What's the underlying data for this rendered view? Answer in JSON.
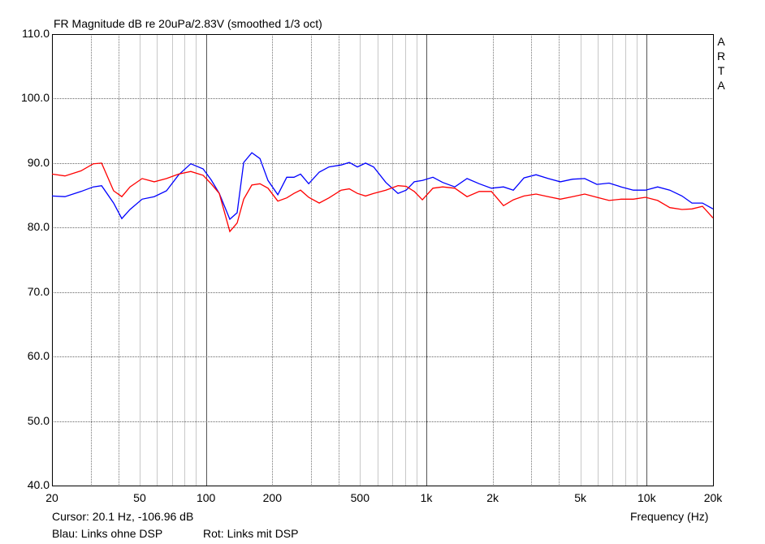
{
  "chart_data": {
    "type": "line",
    "title": "FR Magnitude dB re 20uPa/2.83V (smoothed 1/3 oct)",
    "watermark": "ARTA",
    "xlabel": "Frequency (Hz)",
    "ylabel": "",
    "xscale": "log",
    "xlim": [
      20,
      20000
    ],
    "ylim": [
      40,
      110
    ],
    "grid": true,
    "yticks": [
      {
        "value": 110,
        "label": "110.0"
      },
      {
        "value": 100,
        "label": "100.0"
      },
      {
        "value": 90,
        "label": "90.0"
      },
      {
        "value": 80,
        "label": "80.0"
      },
      {
        "value": 70,
        "label": "70.0"
      },
      {
        "value": 60,
        "label": "60.0"
      },
      {
        "value": 50,
        "label": "50.0"
      },
      {
        "value": 40,
        "label": "40.0"
      }
    ],
    "xticks": [
      {
        "value": 20,
        "label": "20"
      },
      {
        "value": 50,
        "label": "50"
      },
      {
        "value": 100,
        "label": "100"
      },
      {
        "value": 200,
        "label": "200"
      },
      {
        "value": 500,
        "label": "500"
      },
      {
        "value": 1000,
        "label": "1k"
      },
      {
        "value": 2000,
        "label": "2k"
      },
      {
        "value": 5000,
        "label": "5k"
      },
      {
        "value": 10000,
        "label": "10k"
      },
      {
        "value": 20000,
        "label": "20k"
      }
    ],
    "cursor_text": "Cursor: 20.1 Hz, -106.96 dB",
    "legend_text": {
      "blue": "Blau: Links ohne DSP",
      "red": "Rot: Links mit DSP"
    },
    "x": [
      20,
      22.9,
      27.1,
      30.8,
      33.6,
      38.1,
      41.5,
      45.2,
      51.3,
      58.2,
      66.2,
      75.2,
      85.3,
      97,
      105.5,
      114.9,
      128.3,
      138.5,
      148.3,
      161.4,
      175.7,
      191.2,
      211.9,
      232.5,
      250.8,
      268.6,
      292.5,
      326.6,
      361.6,
      410.5,
      446.9,
      486.5,
      529.7,
      576.7,
      654.9,
      743.6,
      809.5,
      881.3,
      959.4,
      1071,
      1186,
      1347,
      1530,
      1737,
      1973,
      2240,
      2482,
      2773,
      3148,
      3574,
      4058,
      4608,
      5233,
      5942,
      6747,
      7661,
      8699,
      9877,
      11216,
      12734,
      14459,
      16058,
      17915,
      20000
    ],
    "series": [
      {
        "name": "Blau: Links ohne DSP",
        "color": "#0000ff",
        "values": [
          84.9,
          84.8,
          85.6,
          86.3,
          86.5,
          83.8,
          81.4,
          82.8,
          84.4,
          84.8,
          85.7,
          88.2,
          89.9,
          89.1,
          87.4,
          85.3,
          81.3,
          82.3,
          90.1,
          91.6,
          90.7,
          87.3,
          85.1,
          87.8,
          87.8,
          88.3,
          86.8,
          88.6,
          89.4,
          89.7,
          90.1,
          89.4,
          90.0,
          89.4,
          87.0,
          85.3,
          85.8,
          87.1,
          87.3,
          87.8,
          87.0,
          86.3,
          87.6,
          86.8,
          86.1,
          86.3,
          85.8,
          87.7,
          88.2,
          87.6,
          87.1,
          87.5,
          87.6,
          86.7,
          86.9,
          86.3,
          85.8,
          85.8,
          86.3,
          85.8,
          84.9,
          83.8,
          83.8,
          82.9
        ]
      },
      {
        "name": "Rot: Links mit DSP",
        "color": "#ff0000",
        "values": [
          88.3,
          88.0,
          88.8,
          89.9,
          90.0,
          85.7,
          84.8,
          86.3,
          87.6,
          87.1,
          87.6,
          88.3,
          88.7,
          88.1,
          86.8,
          85.3,
          79.4,
          80.7,
          84.4,
          86.6,
          86.8,
          86.1,
          84.1,
          84.6,
          85.3,
          85.8,
          84.7,
          83.8,
          84.6,
          85.8,
          86.0,
          85.3,
          84.9,
          85.3,
          85.8,
          86.5,
          86.4,
          85.6,
          84.3,
          86.1,
          86.3,
          86.1,
          84.8,
          85.6,
          85.6,
          83.4,
          84.3,
          84.9,
          85.2,
          84.8,
          84.4,
          84.8,
          85.2,
          84.7,
          84.2,
          84.4,
          84.4,
          84.7,
          84.2,
          83.1,
          82.8,
          82.9,
          83.3,
          81.5
        ]
      }
    ]
  }
}
